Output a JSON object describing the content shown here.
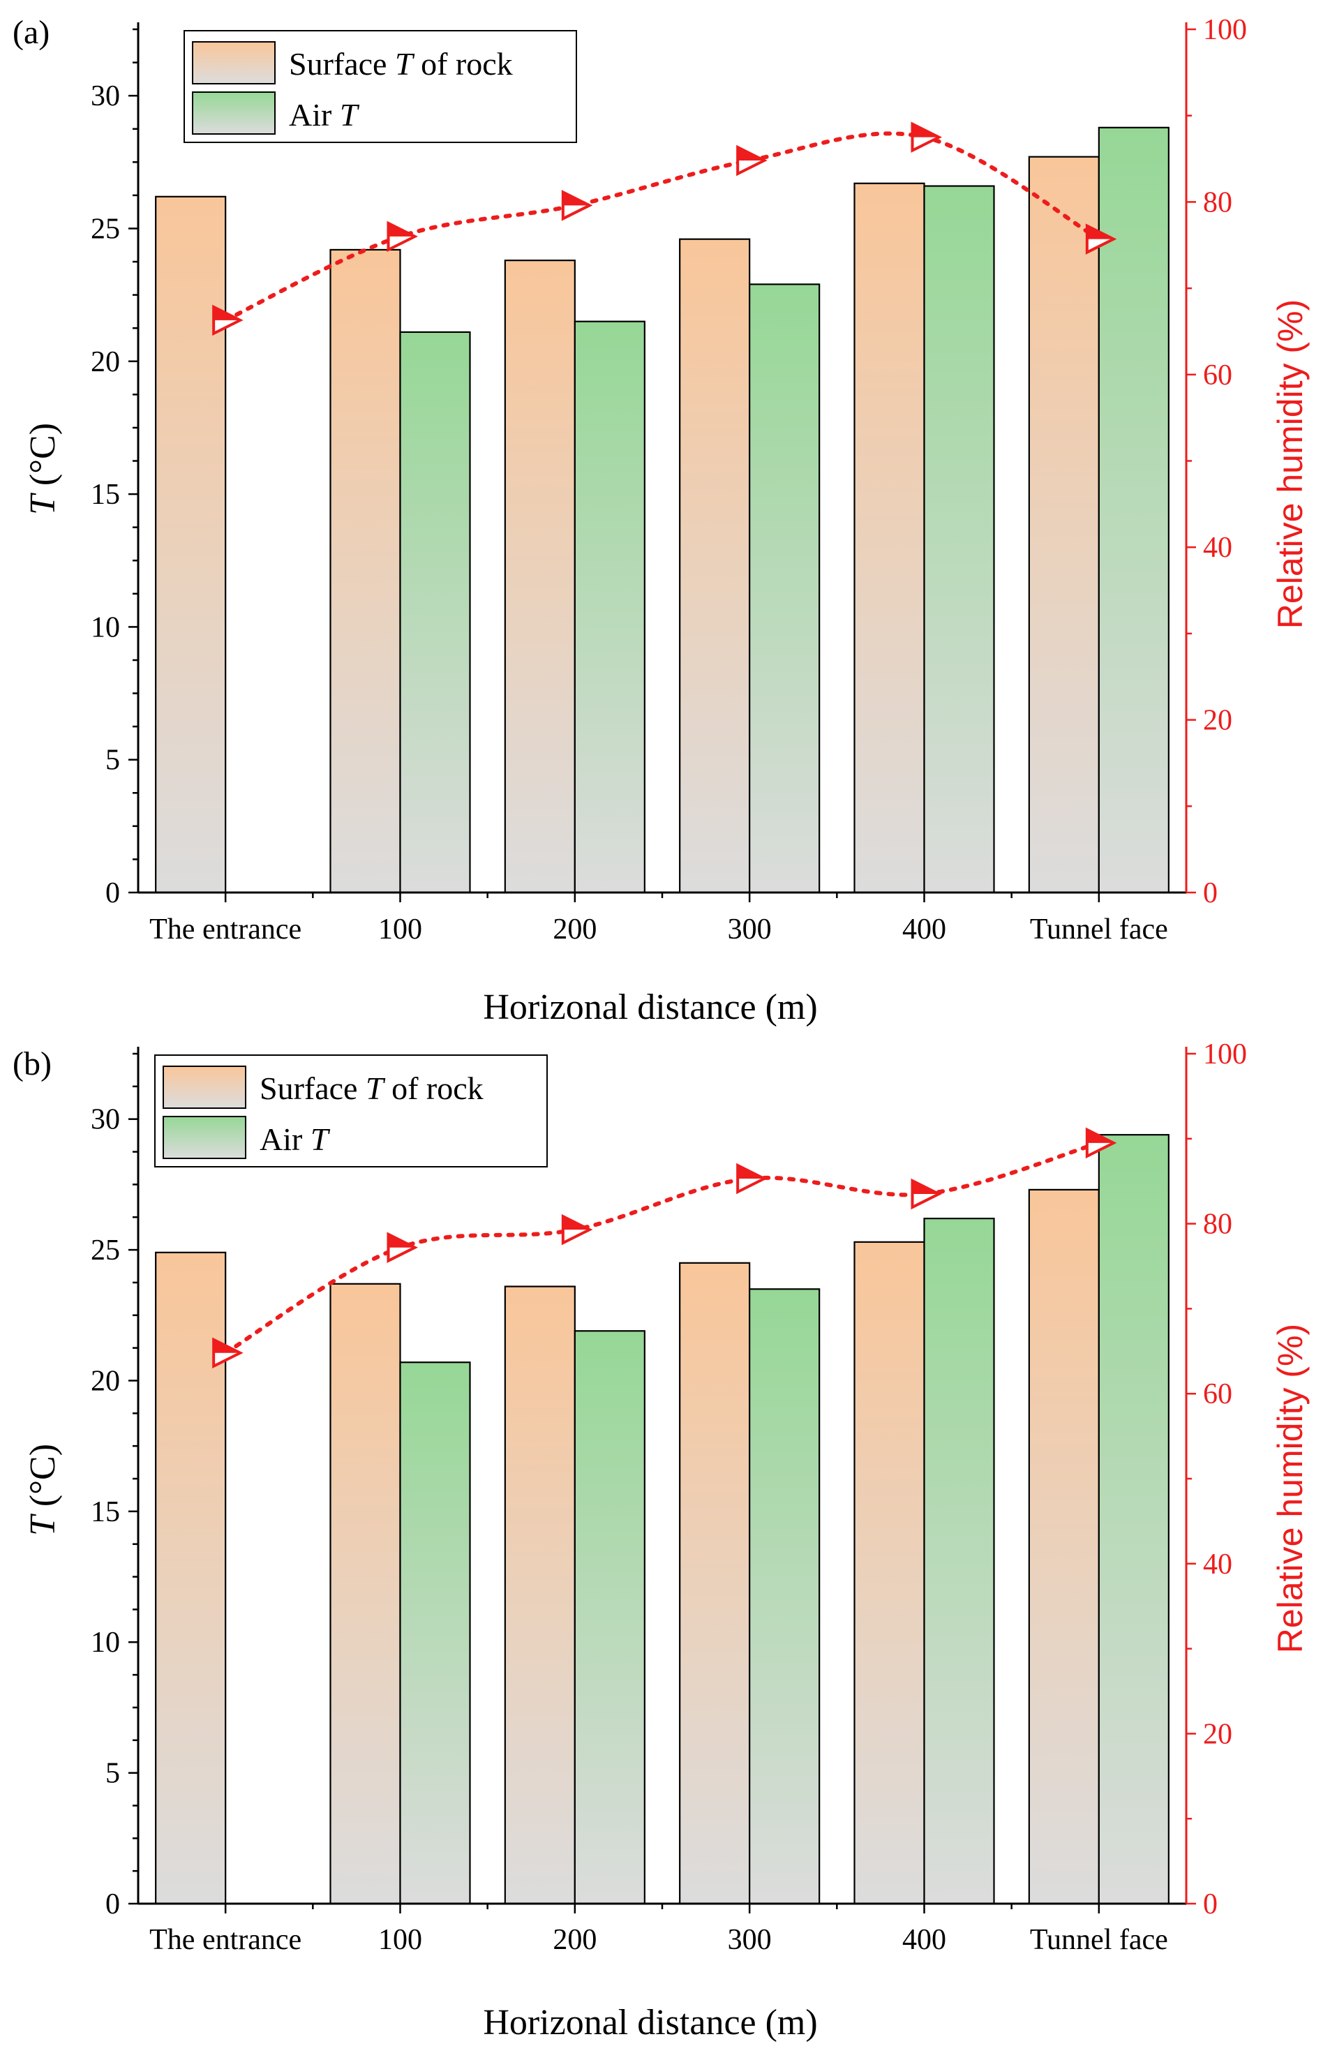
{
  "chart_data": [
    {
      "panel_label": "(a)",
      "type": "bar",
      "categories": [
        "The entrance",
        "100",
        "200",
        "300",
        "400",
        "Tunnel face"
      ],
      "series": [
        {
          "name": "Surface T of rock",
          "legend_prefix": "Surface ",
          "legend_italic": "T",
          "legend_suffix": " of rock",
          "values": [
            26.2,
            24.2,
            23.8,
            24.6,
            26.7,
            27.7
          ],
          "color_top": "#f9c69a",
          "color_bottom": "#dcdcdc"
        },
        {
          "name": "Air T",
          "legend_prefix": "Air ",
          "legend_italic": "T",
          "legend_suffix": "",
          "values": [
            null,
            21.1,
            21.5,
            22.9,
            26.6,
            28.8
          ],
          "color_top": "#96d796",
          "color_bottom": "#dcdcdc"
        }
      ],
      "line_series": {
        "name": "Relative humidity",
        "axis": "right",
        "color": "#ee1c1c",
        "values": [
          66.3,
          76.0,
          79.6,
          84.8,
          87.5,
          75.7
        ]
      },
      "xlabel": "Horizonal distance (m)",
      "ylabel_italic": "T",
      "ylabel_rest": " (°C)",
      "ylim": [
        0,
        32.5
      ],
      "yticks": [
        0,
        5,
        10,
        15,
        20,
        25,
        30
      ],
      "y2label": "Relative humidity (%)",
      "y2lim": [
        0,
        100
      ],
      "y2ticks": [
        0,
        20,
        40,
        60,
        80,
        100
      ],
      "legend_position": "top-left"
    },
    {
      "panel_label": "(b)",
      "type": "bar",
      "categories": [
        "The entrance",
        "100",
        "200",
        "300",
        "400",
        "Tunnel face"
      ],
      "series": [
        {
          "name": "Surface T of rock",
          "legend_prefix": "Surface ",
          "legend_italic": "T",
          "legend_suffix": " of rock",
          "values": [
            24.9,
            23.7,
            23.6,
            24.5,
            25.3,
            27.3
          ],
          "color_top": "#f9c69a",
          "color_bottom": "#dcdcdc"
        },
        {
          "name": "Air T",
          "legend_prefix": "Air ",
          "legend_italic": "T",
          "legend_suffix": "",
          "values": [
            null,
            20.7,
            21.9,
            23.5,
            26.2,
            29.4
          ],
          "color_top": "#96d796",
          "color_bottom": "#dcdcdc"
        }
      ],
      "line_series": {
        "name": "Relative humidity",
        "axis": "right",
        "color": "#ee1c1c",
        "values": [
          64.8,
          77.2,
          79.3,
          85.3,
          83.5,
          89.5
        ]
      },
      "xlabel": "Horizonal distance (m)",
      "ylabel_italic": "T",
      "ylabel_rest": " (°C)",
      "ylim": [
        0,
        32.5
      ],
      "yticks": [
        0,
        5,
        10,
        15,
        20,
        25,
        30
      ],
      "y2label": "Relative humidity (%)",
      "y2lim": [
        0,
        100
      ],
      "y2ticks": [
        0,
        20,
        40,
        60,
        80,
        100
      ],
      "legend_position": "top-left"
    }
  ]
}
